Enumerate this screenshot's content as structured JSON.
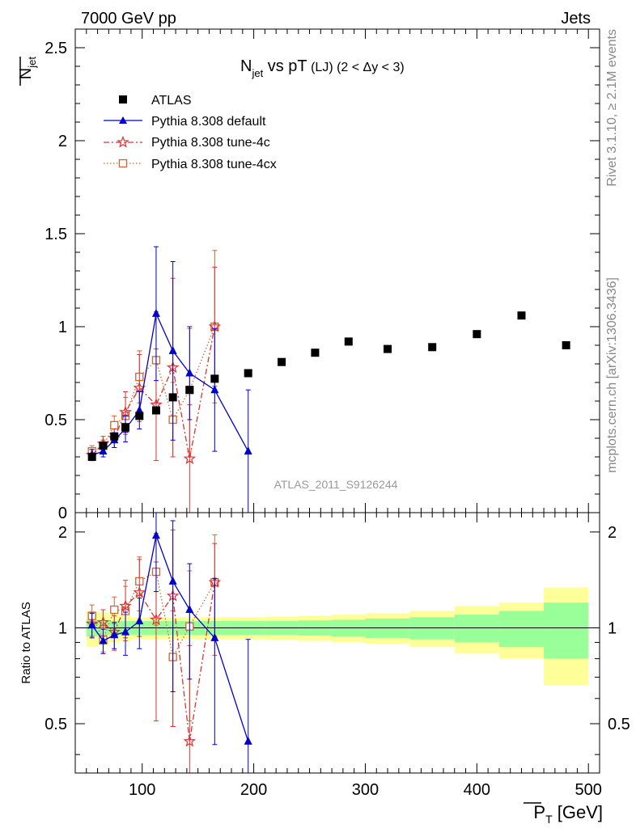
{
  "header": {
    "energy_label": "7000 GeV pp",
    "category_label": "Jets",
    "analysis_id": "ATLAS_2011_S9126244",
    "rivet_label": "Rivet 3.1.10, ≥ 2.1M events",
    "mcplots_label": "mcplots.cern.ch [arXiv:1306.3436]"
  },
  "colors": {
    "atlas": "#000000",
    "default": "#0000cc",
    "tune4c": "#dd3333",
    "tune4cx": "#cc6633",
    "band_inner": "#99ff99",
    "band_outer": "#ffff99"
  },
  "chart_data": [
    {
      "type": "scatter",
      "title": "N_jet vs pT (LJ) (2 < Δy < 3)",
      "title_main": "N",
      "title_sub": "jet",
      "title_rest": " vs pT",
      "title_small": " (LJ) (2 < Δy < 3)",
      "ylabel": "N_jet",
      "xlim": [
        40,
        510
      ],
      "ylim": [
        0,
        2.6
      ],
      "yticks": [
        0.5,
        1,
        1.5,
        2,
        2.5
      ],
      "ytick_labels": [
        "0.5",
        "1",
        "1.5",
        "2",
        "2.5"
      ],
      "ytick_zero_label": "0",
      "legend_position": "top-left",
      "series": [
        {
          "name": "ATLAS",
          "key": "atlas",
          "marker": "square",
          "x": [
            55,
            65,
            75,
            85,
            97.5,
            112.5,
            127.5,
            142.5,
            165,
            195,
            225,
            255,
            285,
            320,
            360,
            400,
            440,
            480
          ],
          "y": [
            0.3,
            0.36,
            0.41,
            0.46,
            0.52,
            0.55,
            0.62,
            0.66,
            0.72,
            0.75,
            0.81,
            0.86,
            0.92,
            0.88,
            0.89,
            0.96,
            1.06,
            0.9
          ]
        },
        {
          "name": "Pythia 8.308 default",
          "key": "default",
          "marker": "triangle",
          "line": "solid",
          "x": [
            55,
            65,
            75,
            85,
            97.5,
            112.5,
            127.5,
            142.5,
            165,
            195
          ],
          "y": [
            0.31,
            0.33,
            0.39,
            0.45,
            0.55,
            1.07,
            0.87,
            0.75,
            0.66,
            0.33
          ],
          "err": [
            0.03,
            0.03,
            0.04,
            0.07,
            0.1,
            0.36,
            0.48,
            0.25,
            0.33,
            0.33
          ]
        },
        {
          "name": "Pythia 8.308 tune-4c",
          "key": "tune4c",
          "marker": "star",
          "line": "dashdot",
          "x": [
            55,
            65,
            75,
            85,
            97.5,
            112.5,
            127.5,
            142.5,
            165
          ],
          "y": [
            0.31,
            0.37,
            0.4,
            0.54,
            0.67,
            0.58,
            0.78,
            0.29,
            1.0
          ],
          "err": [
            0.03,
            0.04,
            0.05,
            0.11,
            0.18,
            0.3,
            0.48,
            0.29,
            0.32
          ]
        },
        {
          "name": "Pythia 8.308 tune-4cx",
          "key": "tune4cx",
          "marker": "open-square",
          "line": "dotted",
          "x": [
            55,
            65,
            75,
            85,
            97.5,
            112.5,
            127.5,
            142.5,
            165
          ],
          "y": [
            0.33,
            0.36,
            0.47,
            0.52,
            0.73,
            0.82,
            0.5,
            0.66,
            1.0
          ],
          "err": [
            0.03,
            0.03,
            0.05,
            0.1,
            0.14,
            0.26,
            0.2,
            0.33,
            0.41
          ]
        }
      ]
    },
    {
      "type": "scatter",
      "title": "",
      "ylabel": "Ratio to ATLAS",
      "xlabel": "P_T [GeV]",
      "xlabel_main": "P",
      "xlabel_sub": "T",
      "xlabel_unit": " [GeV]",
      "xlim": [
        40,
        510
      ],
      "ylim": [
        0.35,
        2.3
      ],
      "yscale": "log",
      "yticks": [
        0.5,
        1,
        2
      ],
      "ytick_labels": [
        "0.5",
        "1",
        "2"
      ],
      "xticks": [
        100,
        200,
        300,
        400,
        500
      ],
      "xtick_labels": [
        "100",
        "200",
        "300",
        "400",
        "500"
      ],
      "bands": {
        "edges": [
          50,
          60,
          70,
          80,
          90,
          105,
          120,
          135,
          150,
          180,
          210,
          240,
          270,
          300,
          340,
          380,
          420,
          460,
          500
        ],
        "outer": [
          0.13,
          0.12,
          0.1,
          0.09,
          0.08,
          0.08,
          0.08,
          0.08,
          0.08,
          0.08,
          0.085,
          0.09,
          0.1,
          0.11,
          0.13,
          0.17,
          0.2,
          0.34
        ],
        "inner": [
          0.06,
          0.05,
          0.05,
          0.05,
          0.05,
          0.05,
          0.05,
          0.05,
          0.05,
          0.05,
          0.05,
          0.055,
          0.06,
          0.07,
          0.08,
          0.1,
          0.13,
          0.2
        ]
      },
      "series": [
        {
          "name": "Pythia 8.308 default",
          "key": "default",
          "marker": "triangle",
          "line": "solid",
          "x": [
            55,
            65,
            75,
            85,
            97.5,
            112.5,
            127.5,
            142.5,
            165,
            195
          ],
          "y": [
            1.02,
            0.91,
            0.95,
            0.97,
            1.05,
            1.95,
            1.4,
            1.14,
            0.93,
            0.44
          ],
          "err": [
            0.09,
            0.08,
            0.09,
            0.15,
            0.19,
            0.65,
            0.77,
            0.45,
            0.5,
            0.48
          ]
        },
        {
          "name": "Pythia 8.308 tune-4c",
          "key": "tune4c",
          "marker": "star",
          "line": "dashdot",
          "x": [
            55,
            65,
            75,
            85,
            97.5,
            112.5,
            127.5,
            142.5,
            165
          ],
          "y": [
            1.03,
            1.04,
            0.97,
            1.17,
            1.29,
            1.06,
            1.26,
            0.44,
            1.39
          ],
          "err": [
            0.09,
            0.1,
            0.12,
            0.24,
            0.35,
            0.55,
            0.77,
            0.44,
            0.45
          ]
        },
        {
          "name": "Pythia 8.308 tune-4cx",
          "key": "tune4cx",
          "marker": "open-square",
          "line": "dotted",
          "x": [
            55,
            65,
            75,
            85,
            97.5,
            112.5,
            127.5,
            142.5,
            165
          ],
          "y": [
            1.09,
            0.92,
            1.14,
            1.13,
            1.4,
            1.5,
            0.81,
            1.01,
            1.39
          ],
          "err": [
            0.09,
            0.08,
            0.11,
            0.22,
            0.27,
            0.48,
            0.32,
            0.5,
            0.57
          ]
        }
      ]
    }
  ]
}
